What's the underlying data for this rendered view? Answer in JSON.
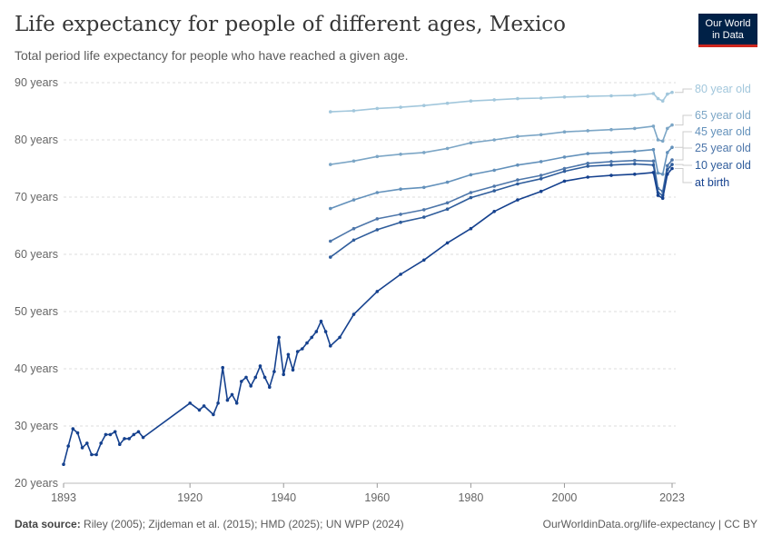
{
  "header": {
    "title": "Life expectancy for people of different ages, Mexico",
    "subtitle": "Total period life expectancy for people who have reached a given age."
  },
  "logo": {
    "line1": "Our World",
    "line2": "in Data"
  },
  "footer": {
    "source_label": "Data source:",
    "source_text": "Riley (2005); Zijdeman et al. (2015); HMD (2025); UN WPP (2024)",
    "url": "OurWorldinData.org/life-expectancy | CC BY"
  },
  "chart_data": {
    "type": "line",
    "title": "Life expectancy for people of different ages, Mexico",
    "subtitle": "Total period life expectancy for people who have reached a given age.",
    "xlim": [
      1893,
      2023
    ],
    "ylim": [
      20,
      90
    ],
    "x_ticks": [
      "1893",
      "1920",
      "1940",
      "1960",
      "1980",
      "2000",
      "2023"
    ],
    "y_ticks": [
      "20 years",
      "30 years",
      "40 years",
      "50 years",
      "60 years",
      "70 years",
      "80 years",
      "90 years"
    ],
    "grid": "horizontal dashed",
    "legend": "right, inline labels",
    "series": [
      {
        "name": "80 year old",
        "color": "#a2c7dc",
        "points": [
          [
            1950,
            84.9
          ],
          [
            1955,
            85.1
          ],
          [
            1960,
            85.5
          ],
          [
            1965,
            85.7
          ],
          [
            1970,
            86.0
          ],
          [
            1975,
            86.4
          ],
          [
            1980,
            86.8
          ],
          [
            1985,
            87.0
          ],
          [
            1990,
            87.2
          ],
          [
            1995,
            87.3
          ],
          [
            2000,
            87.5
          ],
          [
            2005,
            87.6
          ],
          [
            2010,
            87.7
          ],
          [
            2015,
            87.8
          ],
          [
            2019,
            88.1
          ],
          [
            2020,
            87.2
          ],
          [
            2021,
            86.8
          ],
          [
            2022,
            88.0
          ],
          [
            2023,
            88.3
          ]
        ]
      },
      {
        "name": "65 year old",
        "color": "#7ca6c6",
        "points": [
          [
            1950,
            75.7
          ],
          [
            1955,
            76.3
          ],
          [
            1960,
            77.1
          ],
          [
            1965,
            77.5
          ],
          [
            1970,
            77.8
          ],
          [
            1975,
            78.5
          ],
          [
            1980,
            79.5
          ],
          [
            1985,
            80.0
          ],
          [
            1990,
            80.6
          ],
          [
            1995,
            80.9
          ],
          [
            2000,
            81.4
          ],
          [
            2005,
            81.6
          ],
          [
            2010,
            81.8
          ],
          [
            2015,
            82.0
          ],
          [
            2019,
            82.4
          ],
          [
            2020,
            80.0
          ],
          [
            2021,
            79.8
          ],
          [
            2022,
            82.0
          ],
          [
            2023,
            82.6
          ]
        ]
      },
      {
        "name": "45 year old",
        "color": "#6391bb",
        "points": [
          [
            1950,
            68.0
          ],
          [
            1955,
            69.5
          ],
          [
            1960,
            70.8
          ],
          [
            1965,
            71.4
          ],
          [
            1970,
            71.7
          ],
          [
            1975,
            72.6
          ],
          [
            1980,
            73.9
          ],
          [
            1985,
            74.7
          ],
          [
            1990,
            75.6
          ],
          [
            1995,
            76.2
          ],
          [
            2000,
            77.0
          ],
          [
            2005,
            77.6
          ],
          [
            2010,
            77.8
          ],
          [
            2015,
            78.0
          ],
          [
            2019,
            78.3
          ],
          [
            2020,
            74.2
          ],
          [
            2021,
            74.0
          ],
          [
            2022,
            77.8
          ],
          [
            2023,
            78.7
          ]
        ]
      },
      {
        "name": "25 year old",
        "color": "#4d76aa",
        "points": [
          [
            1950,
            62.3
          ],
          [
            1955,
            64.5
          ],
          [
            1960,
            66.2
          ],
          [
            1965,
            67.0
          ],
          [
            1970,
            67.8
          ],
          [
            1975,
            69.0
          ],
          [
            1980,
            70.8
          ],
          [
            1985,
            71.9
          ],
          [
            1990,
            73.0
          ],
          [
            1995,
            73.8
          ],
          [
            2000,
            75.0
          ],
          [
            2005,
            75.9
          ],
          [
            2010,
            76.2
          ],
          [
            2015,
            76.4
          ],
          [
            2019,
            76.3
          ],
          [
            2020,
            71.5
          ],
          [
            2021,
            71.0
          ],
          [
            2022,
            75.5
          ],
          [
            2023,
            76.5
          ]
        ]
      },
      {
        "name": "10 year old",
        "color": "#2e5c9b",
        "points": [
          [
            1950,
            59.5
          ],
          [
            1955,
            62.5
          ],
          [
            1960,
            64.3
          ],
          [
            1965,
            65.6
          ],
          [
            1970,
            66.5
          ],
          [
            1975,
            67.9
          ],
          [
            1980,
            69.9
          ],
          [
            1985,
            71.1
          ],
          [
            1990,
            72.3
          ],
          [
            1995,
            73.2
          ],
          [
            2000,
            74.5
          ],
          [
            2005,
            75.4
          ],
          [
            2010,
            75.6
          ],
          [
            2015,
            75.8
          ],
          [
            2019,
            75.6
          ],
          [
            2020,
            70.8
          ],
          [
            2021,
            70.3
          ],
          [
            2022,
            74.8
          ],
          [
            2023,
            75.7
          ]
        ]
      },
      {
        "name": "at birth",
        "color": "#15418e",
        "points": [
          [
            1893,
            23.3
          ],
          [
            1894,
            26.5
          ],
          [
            1895,
            29.5
          ],
          [
            1896,
            28.8
          ],
          [
            1897,
            26.2
          ],
          [
            1898,
            27.0
          ],
          [
            1899,
            25.0
          ],
          [
            1900,
            25.0
          ],
          [
            1901,
            27.0
          ],
          [
            1902,
            28.5
          ],
          [
            1903,
            28.5
          ],
          [
            1904,
            29.0
          ],
          [
            1905,
            26.8
          ],
          [
            1906,
            27.8
          ],
          [
            1907,
            27.8
          ],
          [
            1908,
            28.5
          ],
          [
            1909,
            29.0
          ],
          [
            1910,
            28.0
          ],
          [
            1920,
            34.0
          ],
          [
            1922,
            32.8
          ],
          [
            1923,
            33.5
          ],
          [
            1925,
            32.0
          ],
          [
            1926,
            34.0
          ],
          [
            1927,
            40.2
          ],
          [
            1928,
            34.5
          ],
          [
            1929,
            35.5
          ],
          [
            1930,
            34.0
          ],
          [
            1931,
            37.8
          ],
          [
            1932,
            38.5
          ],
          [
            1933,
            37.0
          ],
          [
            1934,
            38.5
          ],
          [
            1935,
            40.5
          ],
          [
            1936,
            38.5
          ],
          [
            1937,
            36.8
          ],
          [
            1938,
            39.5
          ],
          [
            1939,
            45.5
          ],
          [
            1940,
            39.0
          ],
          [
            1941,
            42.5
          ],
          [
            1942,
            39.8
          ],
          [
            1943,
            43.0
          ],
          [
            1944,
            43.5
          ],
          [
            1945,
            44.5
          ],
          [
            1946,
            45.5
          ],
          [
            1947,
            46.5
          ],
          [
            1948,
            48.3
          ],
          [
            1949,
            46.5
          ],
          [
            1950,
            44.0
          ],
          [
            1952,
            45.5
          ],
          [
            1955,
            49.5
          ],
          [
            1960,
            53.5
          ],
          [
            1965,
            56.5
          ],
          [
            1970,
            59.0
          ],
          [
            1975,
            62.0
          ],
          [
            1980,
            64.5
          ],
          [
            1985,
            67.5
          ],
          [
            1990,
            69.5
          ],
          [
            1995,
            71.0
          ],
          [
            2000,
            72.8
          ],
          [
            2005,
            73.5
          ],
          [
            2010,
            73.8
          ],
          [
            2015,
            74.0
          ],
          [
            2019,
            74.3
          ],
          [
            2020,
            70.3
          ],
          [
            2021,
            69.8
          ],
          [
            2022,
            74.0
          ],
          [
            2023,
            75.0
          ]
        ]
      }
    ]
  }
}
